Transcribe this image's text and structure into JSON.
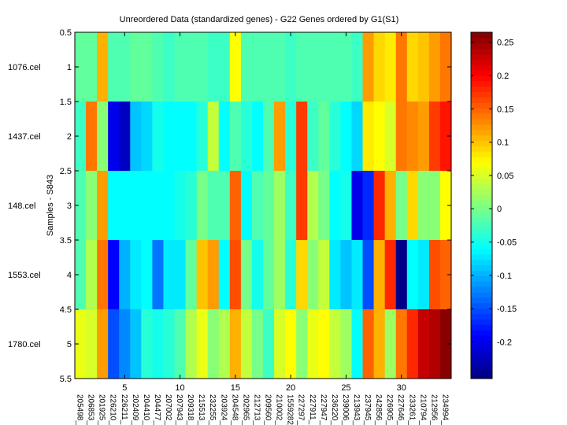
{
  "chart_data": {
    "type": "heatmap",
    "title": "Unreordered Data (standardized genes) - G22 Genes ordered by G1(S1)",
    "ylabel": "Samples - S843",
    "xlabel": "",
    "xlim": [
      0.5,
      34.5
    ],
    "ylim": [
      0.5,
      5.5
    ],
    "x_ticks": [
      5,
      10,
      15,
      20,
      25,
      30
    ],
    "y_ticks": [
      "0.5",
      "1",
      "1.5",
      "2",
      "2.5",
      "3",
      "3.5",
      "4",
      "4.5",
      "5",
      "5.5"
    ],
    "y_tick_values": [
      0.5,
      1,
      1.5,
      2,
      2.5,
      3,
      3.5,
      4,
      4.5,
      5,
      5.5
    ],
    "rows": [
      "1076.cel",
      "1437.cel",
      "148.cel",
      "1553.cel",
      "1780.cel"
    ],
    "columns": [
      "205498_",
      "206853_",
      "201925_",
      "226210_",
      "226211_",
      "202409_",
      "204410_",
      "204477_",
      "207002_",
      "207943_",
      "209318_",
      "215513_",
      "232255_",
      "203924_",
      "204548_",
      "202965_",
      "212713_",
      "209560_",
      "210002_",
      "1559282_",
      "227297_",
      "227911_",
      "227947_",
      "236220_",
      "239006_",
      "213943_",
      "237945_",
      "242856_",
      "226905_",
      "227646_",
      "233261_",
      "210794_",
      "212956_",
      "234994_"
    ],
    "values": [
      [
        -0.01,
        -0.01,
        0.11,
        -0.02,
        -0.02,
        -0.01,
        -0.01,
        -0.02,
        -0.03,
        -0.02,
        -0.02,
        -0.02,
        -0.03,
        -0.03,
        0.07,
        -0.02,
        -0.02,
        -0.02,
        -0.02,
        -0.03,
        -0.02,
        -0.02,
        -0.02,
        -0.02,
        -0.02,
        -0.03,
        0.12,
        0.09,
        0.08,
        0.14,
        0.09,
        0.1,
        0.12,
        0.14
      ],
      [
        -0.03,
        0.14,
        0.01,
        -0.2,
        -0.22,
        -0.09,
        -0.08,
        -0.05,
        -0.06,
        -0.06,
        -0.06,
        -0.04,
        0.04,
        -0.06,
        -0.02,
        -0.04,
        -0.06,
        -0.02,
        0.12,
        -0.04,
        0.17,
        -0.03,
        -0.01,
        -0.04,
        -0.06,
        -0.08,
        0.08,
        0.07,
        0.05,
        0.14,
        0.13,
        0.12,
        0.17,
        0.19
      ],
      [
        -0.02,
        0.01,
        0.12,
        -0.06,
        -0.06,
        -0.06,
        -0.06,
        -0.06,
        -0.06,
        -0.05,
        -0.04,
        0.0,
        -0.02,
        -0.02,
        0.15,
        -0.06,
        -0.02,
        -0.01,
        0.02,
        -0.03,
        0.17,
        0.03,
        0.0,
        -0.06,
        -0.05,
        -0.2,
        -0.17,
        0.18,
        0.11,
        0.0,
        0.09,
        0.01,
        0.01,
        0.07
      ],
      [
        -0.02,
        0.03,
        0.14,
        -0.19,
        -0.1,
        -0.07,
        -0.06,
        -0.13,
        -0.07,
        -0.07,
        -0.01,
        0.1,
        0.12,
        -0.06,
        0.16,
        0.0,
        -0.05,
        -0.01,
        0.02,
        -0.04,
        0.09,
        0.01,
        0.04,
        -0.07,
        -0.09,
        -0.07,
        -0.15,
        0.11,
        0.18,
        -0.25,
        -0.06,
        -0.07,
        0.16,
        0.15
      ],
      [
        0.06,
        0.05,
        0.12,
        -0.15,
        -0.12,
        -0.09,
        -0.04,
        -0.05,
        -0.04,
        -0.02,
        0.03,
        0.06,
        0.01,
        0.03,
        0.11,
        0.04,
        0.0,
        -0.03,
        0.05,
        0.07,
        0.01,
        0.06,
        0.07,
        0.04,
        0.02,
        -0.06,
        0.15,
        0.11,
        0.02,
        0.14,
        0.18,
        0.23,
        0.24,
        0.26
      ]
    ],
    "colorbar": {
      "colormap": "jet",
      "range": [
        -0.255,
        0.265
      ],
      "ticks": [
        -0.2,
        -0.15,
        -0.1,
        -0.05,
        0,
        0.05,
        0.1,
        0.15,
        0.2,
        0.25
      ],
      "tick_labels": [
        "-0.2",
        "-0.15",
        "-0.1",
        "-0.05",
        "0",
        "0.05",
        "0.1",
        "0.15",
        "0.2",
        "0.25"
      ]
    }
  }
}
